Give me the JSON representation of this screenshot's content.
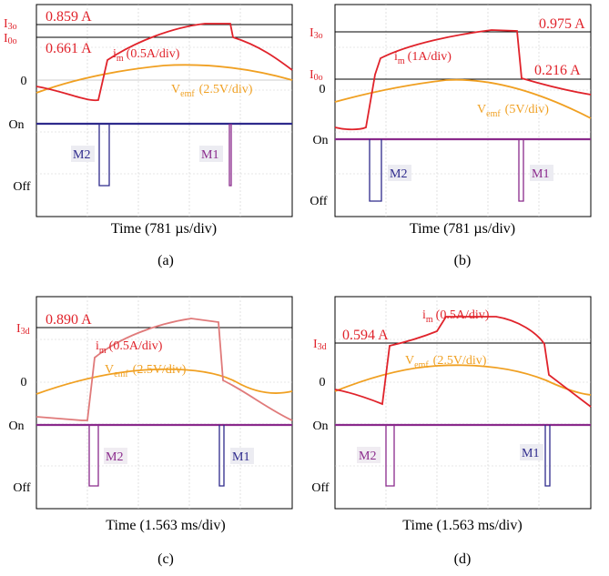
{
  "chart_data": [
    {
      "type": "line",
      "panel_label": "(a)",
      "xlabel": "Time  (781 µs/div)",
      "y_tick_labels": [
        "0",
        "On",
        "Off"
      ],
      "levels": [
        {
          "tick": "I3o",
          "value": "0.859 A"
        },
        {
          "tick": "I0o",
          "value": "0.661 A"
        }
      ],
      "series": [
        {
          "name": "im (0.5A/div)",
          "label_main": "i",
          "label_sub": "m",
          "label_scale": "(0.5A/div)",
          "color": "#e0232b"
        },
        {
          "name": "Vemf (2.5V/div)",
          "label_main": "V",
          "label_sub": "emf",
          "label_scale": "(2.5V/div)",
          "color": "#f0a022"
        }
      ],
      "pulses": [
        {
          "label": "M2",
          "color": "#2e2a8c"
        },
        {
          "label": "M1",
          "color": "#8a2a8c"
        }
      ]
    },
    {
      "type": "line",
      "panel_label": "(b)",
      "xlabel": "Time  (781 µs/div)",
      "y_tick_labels": [
        "0",
        "On",
        "Off"
      ],
      "levels": [
        {
          "tick": "I3o",
          "value": "0.975 A"
        },
        {
          "tick": "I0o",
          "value": "0.216 A"
        }
      ],
      "series": [
        {
          "name": "im (1A/div)",
          "label_main": "i",
          "label_sub": "m",
          "label_scale": "(1A/div)",
          "color": "#e0232b"
        },
        {
          "name": "Vemf (5V/div)",
          "label_main": "V",
          "label_sub": "emf",
          "label_scale": "(5V/div)",
          "color": "#f0a022"
        }
      ],
      "pulses": [
        {
          "label": "M2",
          "color": "#2e2a8c"
        },
        {
          "label": "M1",
          "color": "#8a2a8c"
        }
      ]
    },
    {
      "type": "line",
      "panel_label": "(c)",
      "xlabel": "Time (1.563 ms/div)",
      "y_tick_labels": [
        "0",
        "On",
        "Off"
      ],
      "levels": [
        {
          "tick": "I3d",
          "value": "0.890 A"
        }
      ],
      "series": [
        {
          "name": "im (0.5A/div)",
          "label_main": "i",
          "label_sub": "m",
          "label_scale": "(0.5A/div)",
          "color": "#e07a7a"
        },
        {
          "name": "Vemf (2.5V/div)",
          "label_main": "V",
          "label_sub": "emf",
          "label_scale": "(2.5V/div)",
          "color": "#f0a022"
        }
      ],
      "pulses": [
        {
          "label": "M2",
          "color": "#8a2a8c"
        },
        {
          "label": "M1",
          "color": "#2e2a8c"
        }
      ]
    },
    {
      "type": "line",
      "panel_label": "(d)",
      "xlabel": "Time (1.563 ms/div)",
      "y_tick_labels": [
        "0",
        "On",
        "Off"
      ],
      "levels": [
        {
          "tick": "I3d",
          "value": "0.594 A"
        }
      ],
      "series": [
        {
          "name": "im (0.5A/div)",
          "label_main": "i",
          "label_sub": "m",
          "label_scale": "(0.5A/div)",
          "color": "#e0232b"
        },
        {
          "name": "Vemf (2.5V/div)",
          "label_main": "V",
          "label_sub": "emf",
          "label_scale": "(2.5V/div)",
          "color": "#f0a022"
        }
      ],
      "pulses": [
        {
          "label": "M2",
          "color": "#8a2a8c"
        },
        {
          "label": "M1",
          "color": "#2e2a8c"
        }
      ]
    }
  ]
}
